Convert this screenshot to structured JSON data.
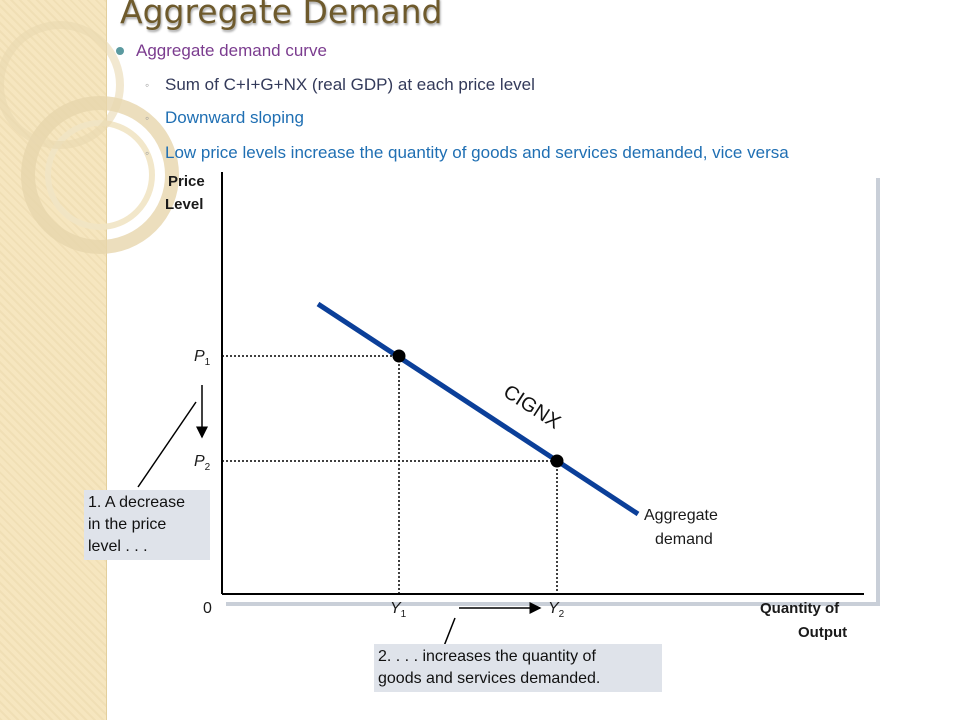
{
  "slide": {
    "title": "Aggregate Demand",
    "bullet": "Aggregate demand curve",
    "sub_bullets": [
      "Sum of C+I+G+NX  (real GDP)  at each price level",
      "Downward sloping",
      "Low price levels increase the quantity of goods and services demanded, vice versa"
    ]
  },
  "diagram": {
    "y_axis_label_line1": "Price",
    "y_axis_label_line2": "Level",
    "x_axis_label_line1": "Quantity of",
    "x_axis_label_line2": "Output",
    "origin": "0",
    "p1": "P",
    "p1_sub": "1",
    "p2": "P",
    "p2_sub": "2",
    "y1": "Y",
    "y1_sub": "1",
    "y2": "Y",
    "y2_sub": "2",
    "curve_label": "CIGNX",
    "curve_name_line1": "Aggregate",
    "curve_name_line2": "demand",
    "callout1_line1": "1. A decrease",
    "callout1_line2": "in the price",
    "callout1_line3": "level . . .",
    "callout2_line1": "2. . . . increases the quantity of",
    "callout2_line2": "goods and services demanded.",
    "colors": {
      "curve": "#0b3f99",
      "title": "#6e5a2c",
      "callout_bg": "#dfe3ea"
    }
  }
}
